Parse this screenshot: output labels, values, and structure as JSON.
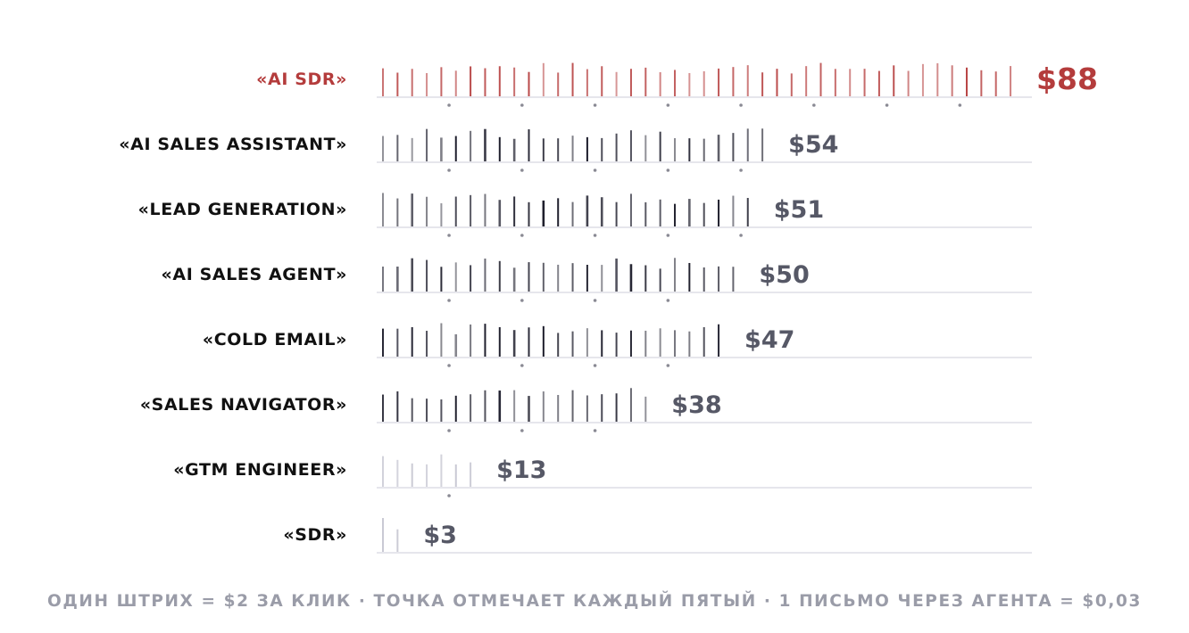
{
  "chart_data": {
    "type": "bar",
    "title": "",
    "xlabel": "",
    "ylabel": "",
    "categories": [
      "«AI SDR»",
      "«AI SALES ASSISTANT»",
      "«LEAD GENERATION»",
      "«AI SALES AGENT»",
      "«COLD EMAIL»",
      "«SALES NAVIGATOR»",
      "«GTM ENGINEER»",
      "«SDR»"
    ],
    "values": [
      88,
      54,
      51,
      50,
      47,
      38,
      13,
      3
    ],
    "value_labels": [
      "$88",
      "$54",
      "$51",
      "$50",
      "$47",
      "$38",
      "$13",
      "$3"
    ],
    "unit_per_stroke": 2,
    "dot_every_n_strokes": 5,
    "highlight_index": 0,
    "xlim": [
      0,
      88
    ],
    "grid": false,
    "legend": "none"
  },
  "colors": {
    "highlight": "#b84545",
    "highlight_text": "#b43c3c",
    "dark_stroke": "#1c1c2a",
    "value_text": "#565866",
    "label_text": "#111111",
    "light_stroke": "#c9c9d4",
    "baseline": "#e6e6ec",
    "dot": "#8a8a94",
    "caption": "#9a9ca8"
  },
  "caption": "ОДИН ШТРИХ = $2 ЗА КЛИК · ТОЧКА ОТМЕЧАЕТ КАЖДЫЙ ПЯТЫЙ · 1 ПИСЬМО ЧЕРЕЗ АГЕНТА = $0,03"
}
